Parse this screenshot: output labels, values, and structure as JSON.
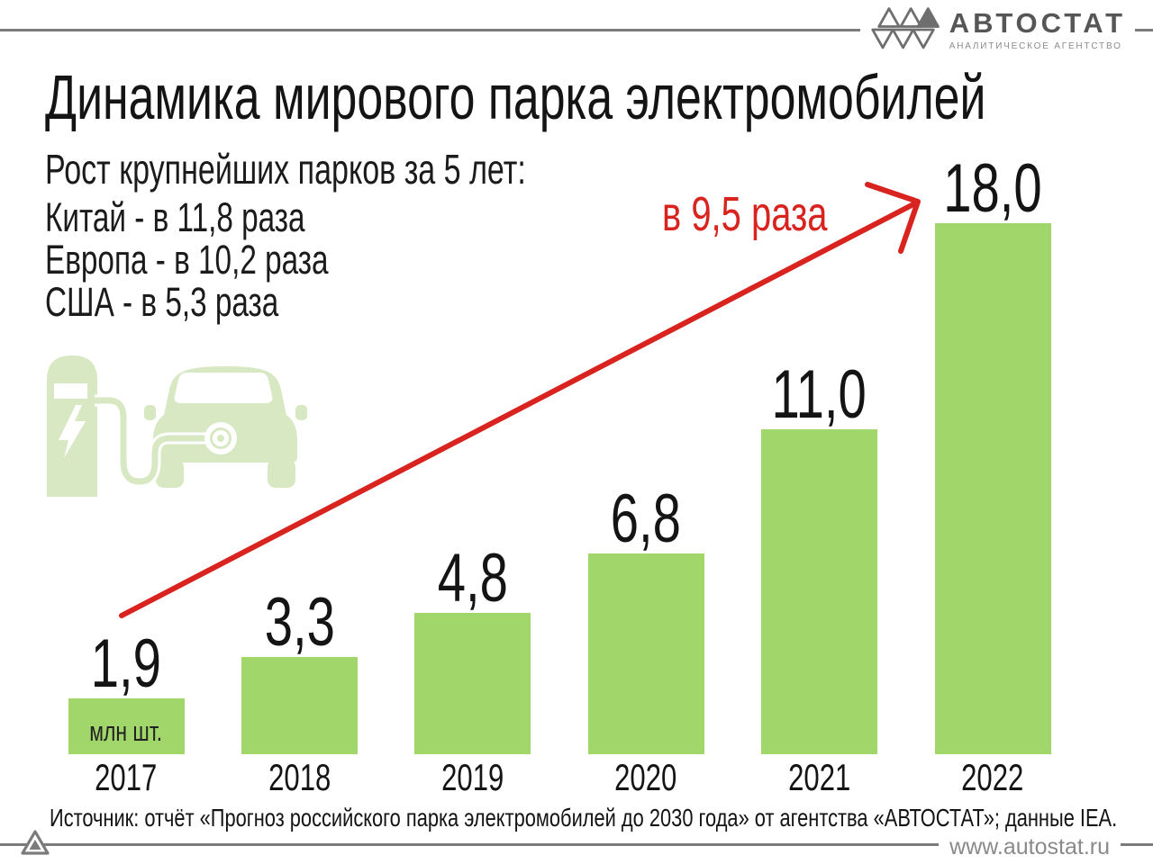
{
  "brand": {
    "logo_text": "АВТОСТАТ",
    "logo_subtext": "АНАЛИТИЧЕСКОЕ АГЕНТСТВО",
    "footer_url": "www.autostat.ru"
  },
  "header": {
    "title": "Динамика мирового парка электромобилей",
    "subtitle": "Рост крупнейших парков за 5 лет:",
    "stats": [
      "Китай - в 11,8 раза",
      "Европа - в 10,2 раза",
      "США - в 5,3 раза"
    ]
  },
  "annotation": {
    "label": "в 9,5 раза"
  },
  "chart_data": {
    "type": "bar",
    "categories": [
      "2017",
      "2018",
      "2019",
      "2020",
      "2021",
      "2022"
    ],
    "values": [
      1.9,
      3.3,
      4.8,
      6.8,
      11.0,
      18.0
    ],
    "value_labels": [
      "1,9",
      "3,3",
      "4,8",
      "6,8",
      "11,0",
      "18,0"
    ],
    "unit_label": "млн шт.",
    "title": "Динамика мирового парка электромобилей",
    "xlabel": "",
    "ylabel": "",
    "ylim": [
      0,
      18
    ],
    "grid": false,
    "legend": false,
    "bar_color": "#a1d66b",
    "annotation": "в 9,5 раза"
  },
  "source": {
    "text": "Источник: отчёт «Прогноз российского парка электромобилей до 2030 года» от агентства «АВТОСТАТ»; данные IEA."
  },
  "colors": {
    "bar_green": "#a1d66b",
    "icon_green": "#d7e8c2",
    "accent_red": "#d8231f",
    "rule_gray": "#7b7b7b",
    "logo_gray": "#565656",
    "muted_gray": "#8a8a8a",
    "text_black": "#141414"
  },
  "icons": [
    "autostat-hexagon-logo-icon",
    "ev-charging-station-icon",
    "growth-arrow-icon",
    "autostat-triangle-icon"
  ]
}
